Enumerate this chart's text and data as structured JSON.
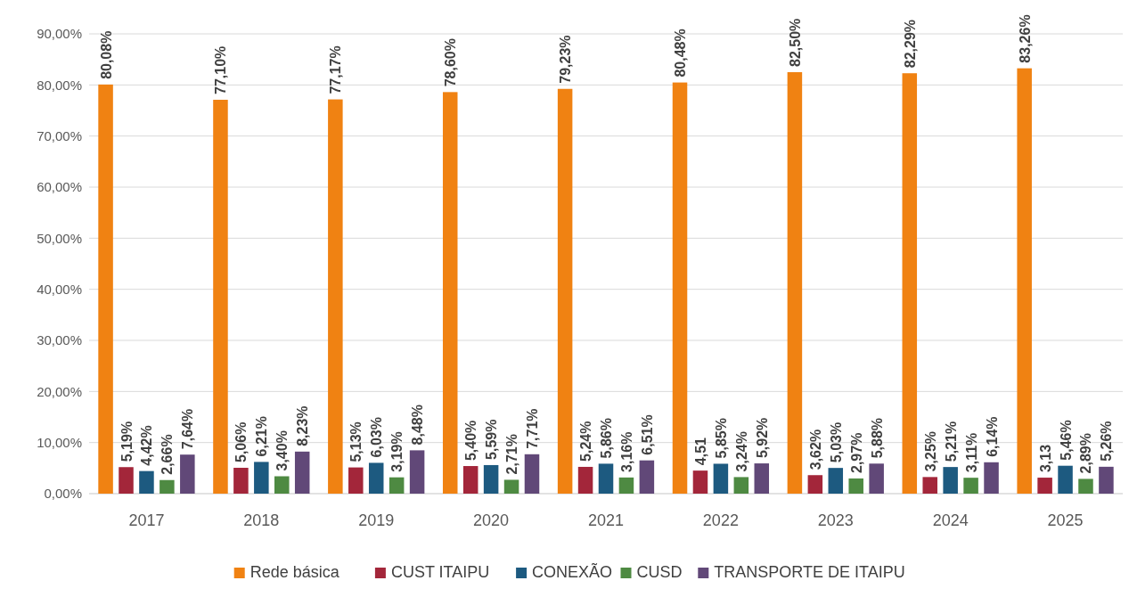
{
  "chart_data": {
    "type": "bar",
    "categories": [
      "2017",
      "2018",
      "2019",
      "2020",
      "2021",
      "2022",
      "2023",
      "2024",
      "2025"
    ],
    "series": [
      {
        "name": "Rede básica",
        "color": "#f08212",
        "values": [
          80.08,
          77.1,
          77.17,
          78.6,
          79.23,
          80.48,
          82.5,
          82.29,
          83.26
        ],
        "value_labels": [
          "80,08%",
          "77,10%",
          "77,17%",
          "78,60%",
          "79,23%",
          "80,48%",
          "82,50%",
          "82,29%",
          "83,26%"
        ]
      },
      {
        "name": "CUST ITAIPU",
        "color": "#a3263a",
        "values": [
          5.19,
          5.06,
          5.13,
          5.4,
          5.24,
          4.51,
          3.62,
          3.25,
          3.13
        ],
        "value_labels": [
          "5,19%",
          "5,06%",
          "5,13%",
          "5,40%",
          "5,24%",
          "4,51",
          "3,62%",
          "3,25%",
          "3,13"
        ]
      },
      {
        "name": "CONEXÃO",
        "color": "#1d5a80",
        "values": [
          4.42,
          6.21,
          6.03,
          5.59,
          5.86,
          5.85,
          5.03,
          5.21,
          5.46
        ],
        "value_labels": [
          "4,42%",
          "6,21%",
          "6,03%",
          "5,59%",
          "5,86%",
          "5,85%",
          "5,03%",
          "5,21%",
          "5,46%"
        ]
      },
      {
        "name": "CUSD",
        "color": "#4e8a42",
        "values": [
          2.66,
          3.4,
          3.19,
          2.71,
          3.16,
          3.24,
          2.97,
          3.11,
          2.89
        ],
        "value_labels": [
          "2,66%",
          "3,40%",
          "3,19%",
          "2,71%",
          "3,16%",
          "3,24%",
          "2,97%",
          "3,11%",
          "2,89%"
        ]
      },
      {
        "name": "TRANSPORTE DE ITAIPU",
        "color": "#614878",
        "values": [
          7.64,
          8.23,
          8.48,
          7.71,
          6.51,
          5.92,
          5.88,
          6.14,
          5.26
        ],
        "value_labels": [
          "7,64%",
          "8,23%",
          "8,48%",
          "7,71%",
          "6,51%",
          "5,92%",
          "5,88%",
          "6,14%",
          "5,26%"
        ]
      }
    ],
    "ylim": [
      0,
      90
    ],
    "yticks": [
      {
        "value": 0,
        "label": "0,00%"
      },
      {
        "value": 10,
        "label": "10,00%"
      },
      {
        "value": 20,
        "label": "20,00%"
      },
      {
        "value": 30,
        "label": "30,00%"
      },
      {
        "value": 40,
        "label": "40,00%"
      },
      {
        "value": 50,
        "label": "50,00%"
      },
      {
        "value": 60,
        "label": "60,00%"
      },
      {
        "value": 70,
        "label": "70,00%"
      },
      {
        "value": 80,
        "label": "80,00%"
      },
      {
        "value": 90,
        "label": "90,00%"
      }
    ],
    "grid": "y",
    "legend": "bottom"
  }
}
